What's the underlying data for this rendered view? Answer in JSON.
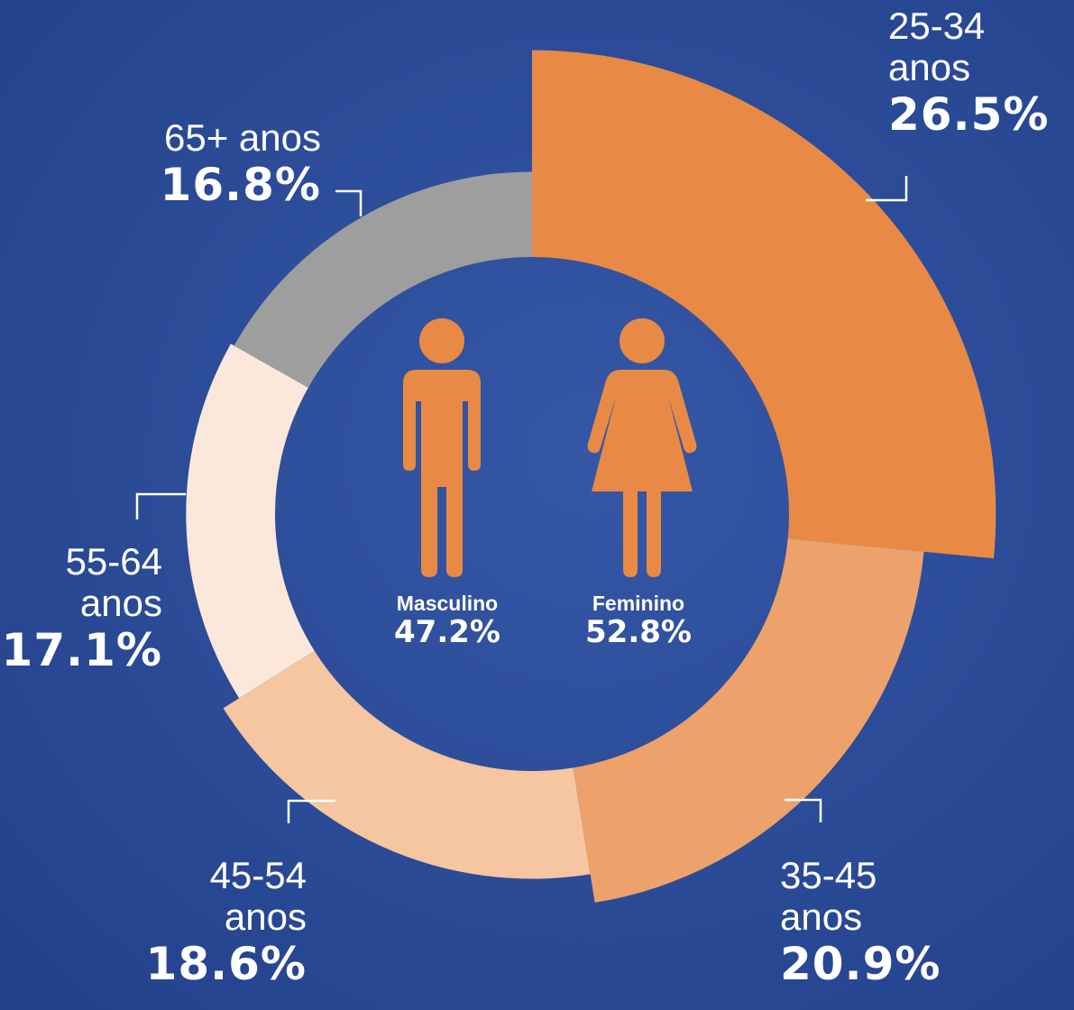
{
  "chart_data": {
    "type": "pie",
    "categories": [
      "25-34 anos",
      "35-45 anos",
      "45-54 anos",
      "55-64 anos",
      "65+ anos"
    ],
    "values": [
      26.5,
      20.9,
      18.6,
      17.1,
      16.8
    ],
    "value_labels": [
      "26.5%",
      "20.9%",
      "18.6%",
      "17.1%",
      "16.8%"
    ],
    "colors": [
      "#e88a45",
      "#eda26b",
      "#f5c6a0",
      "#fbe8db",
      "#9e9e9e"
    ],
    "gender": {
      "categories": [
        "Masculino",
        "Feminino"
      ],
      "values": [
        47.2,
        52.8
      ],
      "value_labels": [
        "47.2%",
        "52.8%"
      ],
      "color": "#e88a45"
    }
  }
}
